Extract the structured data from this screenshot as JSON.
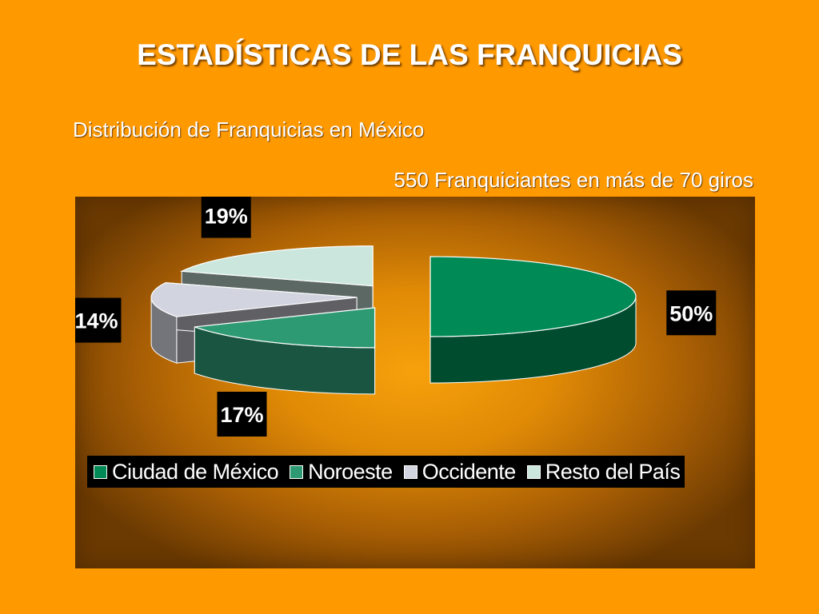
{
  "header": {
    "title": "ESTADÍSTICAS DE LAS FRANQUICIAS",
    "subtitle": "Distribución de Franquicias en México",
    "caption": "550 Franquiciantes en más de 70 giros"
  },
  "chart_data": {
    "type": "pie",
    "style": "3d-exploded",
    "legend_position": "bottom",
    "categories": [
      "Ciudad de México",
      "Noroeste",
      "Occidente",
      "Resto del País"
    ],
    "values": [
      50,
      17,
      14,
      19
    ],
    "labels": [
      "50%",
      "17%",
      "14%",
      "19%"
    ],
    "colors": [
      "#008A55",
      "#2E9A74",
      "#D2D4DF",
      "#CBE7DD"
    ]
  }
}
